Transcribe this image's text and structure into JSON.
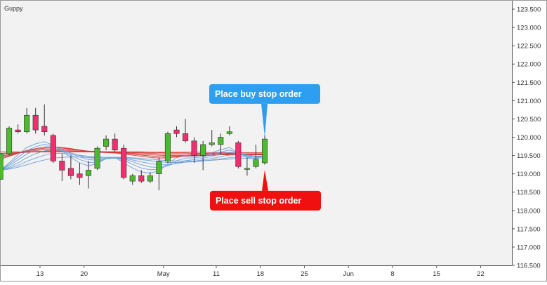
{
  "chart_data": {
    "type": "candlestick",
    "title": "Guppy",
    "colors": {
      "background": "#f2f2f2",
      "up": "#4cba2e",
      "down": "#f0306e",
      "candle_border": "#333333",
      "wick": "#333333",
      "short_ema": "#6f9fd8",
      "long_ema": "#d93030",
      "buy_callout": "#2e9ef0",
      "sell_callout": "#f01010",
      "callout_text": "#ffffff",
      "axis_text": "#333333"
    },
    "y_axis": {
      "min": 116.5,
      "max": 123.75,
      "ticks": [
        "116.500",
        "117.000",
        "117.500",
        "118.000",
        "118.500",
        "119.000",
        "119.500",
        "120.000",
        "120.500",
        "121.000",
        "121.500",
        "122.000",
        "122.500",
        "123.000",
        "123.500"
      ]
    },
    "x_axis": {
      "ticks": [
        {
          "label": "13",
          "index": 4.5
        },
        {
          "label": "20",
          "index": 9.5
        },
        {
          "label": "May",
          "index": 18.5
        },
        {
          "label": "11",
          "index": 24.5
        },
        {
          "label": "18",
          "index": 29.5
        },
        {
          "label": "25",
          "index": 34.5
        },
        {
          "label": "Jun",
          "index": 39.5
        },
        {
          "label": "8",
          "index": 44.5
        },
        {
          "label": "15",
          "index": 49.5
        },
        {
          "label": "22",
          "index": 54.5
        }
      ]
    },
    "candles": [
      {
        "o": 118.85,
        "h": 119.55,
        "l": 118.85,
        "c": 119.55
      },
      {
        "o": 119.55,
        "h": 120.3,
        "l": 119.5,
        "c": 120.25
      },
      {
        "o": 120.2,
        "h": 120.35,
        "l": 120.1,
        "c": 120.15
      },
      {
        "o": 120.15,
        "h": 120.8,
        "l": 120.1,
        "c": 120.6
      },
      {
        "o": 120.6,
        "h": 120.8,
        "l": 120.1,
        "c": 120.2
      },
      {
        "o": 120.3,
        "h": 120.9,
        "l": 120.05,
        "c": 120.15
      },
      {
        "o": 120.05,
        "h": 120.1,
        "l": 119.3,
        "c": 119.35
      },
      {
        "o": 119.35,
        "h": 119.55,
        "l": 118.8,
        "c": 119.1
      },
      {
        "o": 119.15,
        "h": 119.5,
        "l": 118.85,
        "c": 118.95
      },
      {
        "o": 119.0,
        "h": 119.3,
        "l": 118.7,
        "c": 118.9
      },
      {
        "o": 118.95,
        "h": 119.35,
        "l": 118.6,
        "c": 119.1
      },
      {
        "o": 119.15,
        "h": 119.75,
        "l": 119.1,
        "c": 119.7
      },
      {
        "o": 119.75,
        "h": 120.05,
        "l": 119.65,
        "c": 119.95
      },
      {
        "o": 119.95,
        "h": 120.1,
        "l": 119.6,
        "c": 119.65
      },
      {
        "o": 119.7,
        "h": 119.8,
        "l": 118.85,
        "c": 118.9
      },
      {
        "o": 118.8,
        "h": 119.0,
        "l": 118.7,
        "c": 118.95
      },
      {
        "o": 118.95,
        "h": 119.1,
        "l": 118.75,
        "c": 118.8
      },
      {
        "o": 118.8,
        "h": 119.05,
        "l": 118.75,
        "c": 118.95
      },
      {
        "o": 119.0,
        "h": 119.45,
        "l": 118.55,
        "c": 119.35
      },
      {
        "o": 119.35,
        "h": 120.15,
        "l": 119.3,
        "c": 120.1
      },
      {
        "o": 120.2,
        "h": 120.3,
        "l": 120.0,
        "c": 120.1
      },
      {
        "o": 120.1,
        "h": 120.5,
        "l": 119.85,
        "c": 119.9
      },
      {
        "o": 119.9,
        "h": 120.0,
        "l": 119.3,
        "c": 119.5
      },
      {
        "o": 119.5,
        "h": 119.9,
        "l": 119.1,
        "c": 119.8
      },
      {
        "o": 119.8,
        "h": 120.2,
        "l": 119.75,
        "c": 119.85
      },
      {
        "o": 119.8,
        "h": 120.1,
        "l": 119.55,
        "c": 120.0
      },
      {
        "o": 120.1,
        "h": 120.3,
        "l": 120.05,
        "c": 120.15
      },
      {
        "o": 119.85,
        "h": 119.9,
        "l": 119.15,
        "c": 119.2
      },
      {
        "o": 119.15,
        "h": 119.45,
        "l": 118.95,
        "c": 119.15
      },
      {
        "o": 119.2,
        "h": 119.8,
        "l": 119.15,
        "c": 119.4
      },
      {
        "o": 119.3,
        "h": 120.05,
        "l": 119.25,
        "c": 119.95
      }
    ],
    "ema_short": [
      [
        119.1,
        119.3,
        119.52,
        119.72,
        119.82,
        119.88,
        119.78,
        119.62,
        119.45,
        119.3,
        119.22,
        119.28,
        119.42,
        119.45,
        119.3,
        119.16,
        119.05,
        119.02,
        119.08,
        119.28,
        119.44,
        119.5,
        119.48,
        119.5,
        119.58,
        119.66,
        119.72,
        119.58,
        119.45,
        119.42,
        119.5
      ],
      [
        119.1,
        119.26,
        119.45,
        119.63,
        119.74,
        119.81,
        119.76,
        119.64,
        119.51,
        119.39,
        119.31,
        119.32,
        119.41,
        119.45,
        119.37,
        119.26,
        119.16,
        119.11,
        119.12,
        119.24,
        119.36,
        119.43,
        119.44,
        119.47,
        119.53,
        119.6,
        119.65,
        119.58,
        119.49,
        119.45,
        119.49
      ],
      [
        119.1,
        119.22,
        119.38,
        119.54,
        119.66,
        119.74,
        119.74,
        119.66,
        119.56,
        119.46,
        119.39,
        119.37,
        119.41,
        119.44,
        119.41,
        119.33,
        119.25,
        119.19,
        119.17,
        119.22,
        119.3,
        119.36,
        119.39,
        119.43,
        119.48,
        119.54,
        119.59,
        119.57,
        119.52,
        119.48,
        119.49
      ],
      [
        119.1,
        119.18,
        119.3,
        119.44,
        119.55,
        119.63,
        119.67,
        119.63,
        119.57,
        119.5,
        119.44,
        119.42,
        119.42,
        119.43,
        119.42,
        119.38,
        119.33,
        119.28,
        119.25,
        119.25,
        119.28,
        119.32,
        119.35,
        119.38,
        119.42,
        119.47,
        119.51,
        119.52,
        119.5,
        119.48,
        119.49
      ],
      [
        119.1,
        119.15,
        119.23,
        119.34,
        119.43,
        119.51,
        119.56,
        119.56,
        119.54,
        119.51,
        119.48,
        119.46,
        119.45,
        119.45,
        119.44,
        119.42,
        119.39,
        119.36,
        119.33,
        119.31,
        119.31,
        119.32,
        119.33,
        119.35,
        119.38,
        119.41,
        119.44,
        119.46,
        119.46,
        119.46,
        119.47
      ],
      [
        119.1,
        119.13,
        119.18,
        119.25,
        119.32,
        119.38,
        119.43,
        119.45,
        119.46,
        119.46,
        119.45,
        119.45,
        119.45,
        119.45,
        119.45,
        119.44,
        119.42,
        119.4,
        119.38,
        119.36,
        119.35,
        119.35,
        119.35,
        119.36,
        119.37,
        119.39,
        119.4,
        119.42,
        119.42,
        119.43,
        119.44
      ]
    ],
    "ema_long": [
      [
        119.4,
        119.48,
        119.56,
        119.64,
        119.69,
        119.73,
        119.74,
        119.72,
        119.69,
        119.65,
        119.61,
        119.59,
        119.58,
        119.57,
        119.55,
        119.51,
        119.48,
        119.45,
        119.43,
        119.44,
        119.46,
        119.48,
        119.49,
        119.5,
        119.51,
        119.53,
        119.55,
        119.55,
        119.54,
        119.53,
        119.54
      ],
      [
        119.44,
        119.5,
        119.57,
        119.63,
        119.67,
        119.7,
        119.71,
        119.7,
        119.68,
        119.65,
        119.62,
        119.6,
        119.59,
        119.58,
        119.56,
        119.54,
        119.51,
        119.49,
        119.47,
        119.47,
        119.48,
        119.49,
        119.5,
        119.5,
        119.51,
        119.52,
        119.53,
        119.53,
        119.53,
        119.52,
        119.53
      ],
      [
        119.48,
        119.52,
        119.57,
        119.61,
        119.64,
        119.66,
        119.67,
        119.67,
        119.66,
        119.64,
        119.62,
        119.61,
        119.6,
        119.59,
        119.58,
        119.56,
        119.54,
        119.52,
        119.51,
        119.5,
        119.5,
        119.5,
        119.51,
        119.51,
        119.51,
        119.52,
        119.52,
        119.52,
        119.52,
        119.52,
        119.52
      ],
      [
        119.52,
        119.55,
        119.57,
        119.59,
        119.61,
        119.62,
        119.63,
        119.63,
        119.63,
        119.62,
        119.61,
        119.61,
        119.6,
        119.6,
        119.59,
        119.58,
        119.57,
        119.56,
        119.55,
        119.54,
        119.54,
        119.54,
        119.53,
        119.53,
        119.53,
        119.53,
        119.53,
        119.53,
        119.53,
        119.52,
        119.52
      ],
      [
        119.56,
        119.57,
        119.58,
        119.59,
        119.6,
        119.6,
        119.61,
        119.61,
        119.61,
        119.61,
        119.61,
        119.6,
        119.6,
        119.6,
        119.6,
        119.59,
        119.59,
        119.58,
        119.58,
        119.57,
        119.57,
        119.57,
        119.56,
        119.56,
        119.56,
        119.56,
        119.56,
        119.55,
        119.55,
        119.55,
        119.55
      ],
      [
        119.6,
        119.6,
        119.6,
        119.6,
        119.6,
        119.6,
        119.6,
        119.6,
        119.6,
        119.6,
        119.6,
        119.6,
        119.6,
        119.6,
        119.6,
        119.6,
        119.6,
        119.59,
        119.59,
        119.59,
        119.59,
        119.59,
        119.59,
        119.59,
        119.58,
        119.58,
        119.58,
        119.58,
        119.58,
        119.58,
        119.58
      ]
    ],
    "annotations": [
      {
        "text": "Place buy stop order",
        "kind": "buy",
        "pointer_price": 120.05,
        "pointer_index": 30
      },
      {
        "text": "Place sell stop order",
        "kind": "sell",
        "pointer_price": 119.15,
        "pointer_index": 30
      }
    ]
  }
}
